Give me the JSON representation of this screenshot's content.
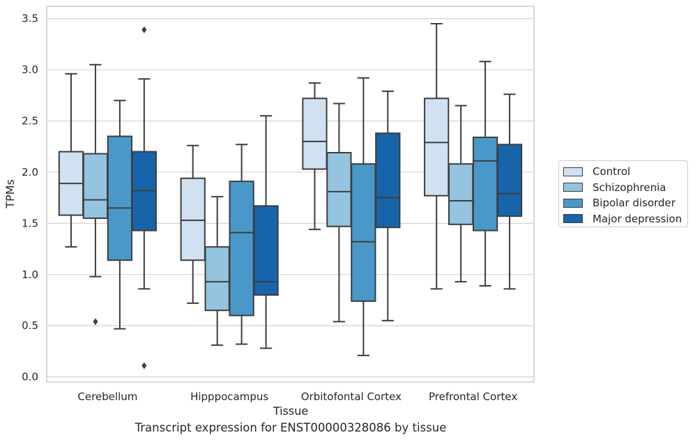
{
  "chart_data": {
    "type": "box",
    "caption": "Transcript expression for ENST00000328086 by tissue",
    "xlabel": "Tissue",
    "ylabel": "TPMs",
    "ylim": [
      -0.05,
      3.62
    ],
    "yticks": [
      0.0,
      0.5,
      1.0,
      1.5,
      2.0,
      2.5,
      3.0,
      3.5
    ],
    "ytick_labels": [
      "0.0",
      "0.5",
      "1.0",
      "1.5",
      "2.0",
      "2.5",
      "3.0",
      "3.5"
    ],
    "categories": [
      "Cerebellum",
      "Hipppocampus",
      "Orbitofontal Cortex",
      "Prefrontal Cortex"
    ],
    "grid": "horizontal",
    "legend_position": "right-outside",
    "series": [
      {
        "name": "Control",
        "color": "#d0e1f2",
        "boxes": [
          {
            "whislo": 1.27,
            "q1": 1.58,
            "med": 1.89,
            "q3": 2.2,
            "whishi": 2.96,
            "fliers": []
          },
          {
            "whislo": 0.72,
            "q1": 1.14,
            "med": 1.53,
            "q3": 1.94,
            "whishi": 2.26,
            "fliers": []
          },
          {
            "whislo": 1.44,
            "q1": 2.03,
            "med": 2.3,
            "q3": 2.72,
            "whishi": 2.87,
            "fliers": []
          },
          {
            "whislo": 0.86,
            "q1": 1.77,
            "med": 2.29,
            "q3": 2.72,
            "whishi": 3.45,
            "fliers": []
          }
        ]
      },
      {
        "name": "Schizophrenia",
        "color": "#94c4df",
        "boxes": [
          {
            "whislo": 0.98,
            "q1": 1.55,
            "med": 1.73,
            "q3": 2.18,
            "whishi": 3.05,
            "fliers": [
              0.54
            ]
          },
          {
            "whislo": 0.31,
            "q1": 0.65,
            "med": 0.93,
            "q3": 1.27,
            "whishi": 1.76,
            "fliers": []
          },
          {
            "whislo": 0.54,
            "q1": 1.47,
            "med": 1.81,
            "q3": 2.19,
            "whishi": 2.67,
            "fliers": []
          },
          {
            "whislo": 0.93,
            "q1": 1.49,
            "med": 1.72,
            "q3": 2.08,
            "whishi": 2.65,
            "fliers": []
          }
        ]
      },
      {
        "name": "Bipolar disorder",
        "color": "#4a98c9",
        "boxes": [
          {
            "whislo": 0.47,
            "q1": 1.14,
            "med": 1.65,
            "q3": 2.35,
            "whishi": 2.7,
            "fliers": []
          },
          {
            "whislo": 0.32,
            "q1": 0.6,
            "med": 1.41,
            "q3": 1.91,
            "whishi": 2.27,
            "fliers": []
          },
          {
            "whislo": 0.21,
            "q1": 0.74,
            "med": 1.32,
            "q3": 2.08,
            "whishi": 2.92,
            "fliers": []
          },
          {
            "whislo": 0.89,
            "q1": 1.43,
            "med": 2.11,
            "q3": 2.34,
            "whishi": 3.08,
            "fliers": []
          }
        ]
      },
      {
        "name": "Major depression",
        "color": "#1764ab",
        "boxes": [
          {
            "whislo": 0.86,
            "q1": 1.43,
            "med": 1.82,
            "q3": 2.2,
            "whishi": 2.91,
            "fliers": [
              3.39,
              0.11
            ]
          },
          {
            "whislo": 0.28,
            "q1": 0.8,
            "med": 0.93,
            "q3": 1.67,
            "whishi": 2.55,
            "fliers": []
          },
          {
            "whislo": 0.55,
            "q1": 1.46,
            "med": 1.75,
            "q3": 2.38,
            "whishi": 2.79,
            "fliers": []
          },
          {
            "whislo": 0.86,
            "q1": 1.57,
            "med": 1.79,
            "q3": 2.27,
            "whishi": 2.76,
            "fliers": []
          }
        ]
      }
    ]
  }
}
